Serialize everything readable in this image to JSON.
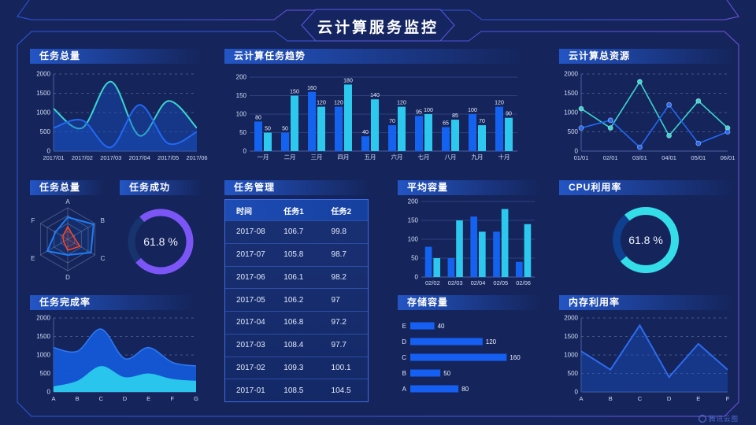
{
  "header": {
    "title": "云计算服务监控"
  },
  "watermark": {
    "label": "腾讯云图"
  },
  "panels": {
    "p1": {
      "title": "任务总量"
    },
    "p2": {
      "title": "云计算任务趋势"
    },
    "p3": {
      "title": "云计算总资源"
    },
    "p4": {
      "title": "任务总量"
    },
    "p5": {
      "title": "任务成功"
    },
    "p6": {
      "title": "任务管理"
    },
    "p7": {
      "title": "平均容量"
    },
    "p8": {
      "title": "CPU利用率"
    },
    "p9": {
      "title": "任务完成率"
    },
    "p10": {
      "title": "存储容量"
    },
    "p11": {
      "title": "内存利用率"
    }
  },
  "colors": {
    "background": "#15255c",
    "accent_blue": "#1463f0",
    "accent_cyan": "#2cc8ee",
    "accent_teal": "#3bd6cf",
    "accent_purple": "#7c55f6",
    "accent_red": "#ff4420",
    "frame_line": "#3250d2"
  },
  "chart_data": [
    {
      "id": "task_total_line",
      "type": "area",
      "title": "任务总量",
      "x": [
        "2017/01",
        "2017/02",
        "2017/03",
        "2017/04",
        "2017/05",
        "2017/06"
      ],
      "series": [
        {
          "name": "series-teal",
          "color": "#3bd6cf",
          "values": [
            1100,
            600,
            1800,
            400,
            1300,
            600
          ]
        },
        {
          "name": "series-blue",
          "color": "#2268f2",
          "values": [
            600,
            800,
            100,
            1200,
            200,
            500
          ]
        }
      ],
      "yticks": [
        0,
        500,
        1000,
        1500,
        2000
      ],
      "ylim": [
        0,
        2000
      ],
      "grid": "dashed",
      "smooth": true
    },
    {
      "id": "task_trend",
      "type": "bar",
      "title": "云计算任务趋势",
      "categories": [
        "一月",
        "二月",
        "三月",
        "四月",
        "五月",
        "六月",
        "七月",
        "八月",
        "九月",
        "十月"
      ],
      "series": [
        {
          "name": "series-blue",
          "color": "#1463f0",
          "values": [
            80,
            50,
            160,
            120,
            40,
            70,
            95,
            65,
            100,
            120
          ]
        },
        {
          "name": "series-cyan",
          "color": "#2cc8ee",
          "values": [
            50,
            150,
            120,
            180,
            140,
            120,
            100,
            85,
            70,
            90
          ]
        }
      ],
      "yticks": [
        0,
        50,
        100,
        150,
        200
      ],
      "ylim": [
        0,
        200
      ],
      "show_labels": true
    },
    {
      "id": "cloud_resources",
      "type": "line",
      "title": "云计算总资源",
      "x": [
        "01/01",
        "02/01",
        "03/01",
        "04/01",
        "05/01",
        "06/01"
      ],
      "series": [
        {
          "name": "series-teal",
          "color": "#3bd6cf",
          "values": [
            1100,
            600,
            1800,
            400,
            1300,
            600
          ]
        },
        {
          "name": "series-blue",
          "color": "#2268f2",
          "values": [
            600,
            800,
            100,
            1200,
            200,
            500
          ]
        }
      ],
      "yticks": [
        0,
        500,
        1000,
        1500,
        2000
      ],
      "ylim": [
        0,
        2000
      ],
      "grid": "dashed",
      "markers": true
    },
    {
      "id": "task_total_radar",
      "type": "radar",
      "title": "任务总量",
      "axes": [
        "A",
        "B",
        "C",
        "D",
        "E",
        "F"
      ],
      "max": 100,
      "series": [
        {
          "name": "series-blue",
          "color": "#1f7cf4",
          "values": [
            70,
            95,
            85,
            50,
            75,
            45
          ]
        },
        {
          "name": "series-red",
          "color": "#ff4420",
          "values": [
            40,
            20,
            45,
            35,
            15,
            18
          ]
        }
      ]
    },
    {
      "id": "task_success",
      "type": "donut",
      "title": "任务成功",
      "value": 61.8,
      "unit": "%",
      "color": "#7c55f6",
      "track": "#17346f",
      "start_deg": 320,
      "sweep_deg": 270
    },
    {
      "id": "task_manage",
      "type": "table",
      "title": "任务管理",
      "headers": [
        "时间",
        "任务1",
        "任务2"
      ],
      "rows": [
        [
          "2017-08",
          "106.7",
          "99.8"
        ],
        [
          "2017-07",
          "105.8",
          "98.7"
        ],
        [
          "2017-06",
          "106.1",
          "98.2"
        ],
        [
          "2017-05",
          "106.2",
          "97"
        ],
        [
          "2017-04",
          "106.8",
          "97.2"
        ],
        [
          "2017-03",
          "108.4",
          "97.7"
        ],
        [
          "2017-02",
          "109.3",
          "100.1"
        ],
        [
          "2017-01",
          "108.5",
          "104.5"
        ]
      ]
    },
    {
      "id": "avg_capacity",
      "type": "bar",
      "title": "平均容量",
      "categories": [
        "02/02",
        "02/03",
        "02/04",
        "02/05",
        "02/06"
      ],
      "series": [
        {
          "name": "series-blue",
          "color": "#1463f0",
          "values": [
            80,
            50,
            160,
            120,
            40
          ]
        },
        {
          "name": "series-cyan",
          "color": "#2cc8ee",
          "values": [
            50,
            150,
            120,
            180,
            140
          ]
        }
      ],
      "yticks": [
        0,
        50,
        100,
        150,
        200
      ],
      "ylim": [
        0,
        200
      ],
      "show_labels": false
    },
    {
      "id": "cpu_usage",
      "type": "donut",
      "title": "CPU利用率",
      "value": 61.8,
      "unit": "%",
      "color": "#35dde9",
      "track": "#0f3f8f",
      "start_deg": 320,
      "sweep_deg": 270
    },
    {
      "id": "task_complete",
      "type": "stacked_area",
      "title": "任务完成率",
      "x": [
        "A",
        "B",
        "C",
        "D",
        "E",
        "F",
        "G"
      ],
      "series": [
        {
          "name": "series-blue",
          "color": "#1c63e0",
          "values": [
            1200,
            1100,
            1700,
            900,
            1200,
            800,
            700
          ]
        },
        {
          "name": "series-cyan",
          "color": "#29c5ec",
          "values": [
            150,
            300,
            700,
            400,
            500,
            350,
            300
          ]
        }
      ],
      "yticks": [
        0,
        500,
        1000,
        1500,
        2000
      ],
      "ylim": [
        0,
        2000
      ],
      "grid": "dashed",
      "smooth": true
    },
    {
      "id": "storage",
      "type": "hbar",
      "title": "存储容量",
      "categories": [
        "E",
        "D",
        "C",
        "B",
        "A"
      ],
      "values": [
        40,
        120,
        160,
        50,
        80
      ],
      "color": "#1560f2",
      "xlim": [
        0,
        170
      ]
    },
    {
      "id": "memory",
      "type": "line_area",
      "title": "内存利用率",
      "x": [
        "A",
        "B",
        "C",
        "D",
        "E",
        "F"
      ],
      "values": [
        1100,
        600,
        1800,
        400,
        1300,
        600
      ],
      "color": "#2d6cf0",
      "yticks": [
        0,
        500,
        1000,
        1500,
        2000
      ],
      "ylim": [
        0,
        2000
      ],
      "grid": "dashed"
    }
  ]
}
